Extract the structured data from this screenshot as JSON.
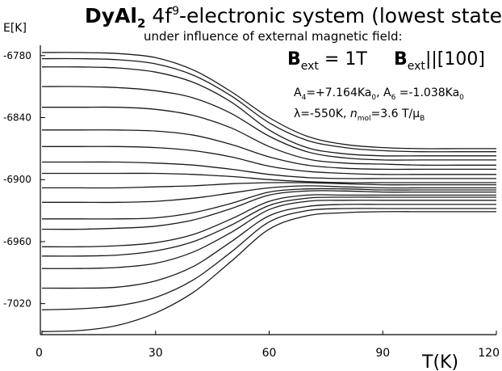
{
  "chart_data": {
    "type": "line",
    "title": {
      "main": "DyAl",
      "main_sub": "2",
      "formula_a": " 4f",
      "formula_sup": "9",
      "formula_b": "-electronic system (lowest states)"
    },
    "subtitle": "under influence of external magnetic field:",
    "field_annotation": {
      "b": "B",
      "ext": "ext",
      "value": " = 1T",
      "direction": "||[100]"
    },
    "param_line1": {
      "a4": "A",
      "a4_sub": "4",
      "a4_val": "=+7.164Ka",
      "a4_zero": "0",
      "sep": ", ",
      "a6": "A",
      "a6_sub": "6",
      "a6_val": " =-1.038Ka",
      "a6_zero": "0"
    },
    "param_line2": {
      "lambda": "λ=-550K,  ",
      "n": "n",
      "n_sub": "mol",
      "n_val": "=3.6 T/μ",
      "n_unit_sub": "B"
    },
    "xlabel": "T(K)",
    "ylabel": "E[K]",
    "xlim": [
      0,
      120
    ],
    "ylim": [
      -7050,
      -6770
    ],
    "x_ticks": [
      0,
      30,
      60,
      90,
      120
    ],
    "x_tick_labels": [
      "0",
      "30",
      "60",
      "90",
      "120"
    ],
    "y_ticks": [
      -6780,
      -6840,
      -6900,
      -6960,
      -7020
    ],
    "y_tick_labels": [
      "-6780",
      "-6840",
      "-6900",
      "-6960",
      "-7020"
    ],
    "grid": false,
    "x": [
      0,
      10,
      20,
      30,
      40,
      50,
      60,
      70,
      80,
      90,
      100,
      110,
      120
    ],
    "series": [
      {
        "values": [
          -6777,
          -6777,
          -6778,
          -6782,
          -6794,
          -6815,
          -6840,
          -6858,
          -6866,
          -6869,
          -6870,
          -6870,
          -6870
        ]
      },
      {
        "values": [
          -6783,
          -6783,
          -6784,
          -6788,
          -6799,
          -6819,
          -6845,
          -6862,
          -6869,
          -6872,
          -6873,
          -6873,
          -6873
        ]
      },
      {
        "values": [
          -6791,
          -6791,
          -6792,
          -6796,
          -6806,
          -6825,
          -6852,
          -6869,
          -6875,
          -6877,
          -6877,
          -6877,
          -6877
        ]
      },
      {
        "values": [
          -6810,
          -6810,
          -6811,
          -6814,
          -6821,
          -6836,
          -6858,
          -6873,
          -6879,
          -6881,
          -6881,
          -6881,
          -6881
        ]
      },
      {
        "values": [
          -6830,
          -6830,
          -6830,
          -6832,
          -6838,
          -6850,
          -6868,
          -6880,
          -6884,
          -6885,
          -6886,
          -6886,
          -6886
        ]
      },
      {
        "values": [
          -6852,
          -6852,
          -6852,
          -6853,
          -6857,
          -6866,
          -6878,
          -6886,
          -6889,
          -6890,
          -6890,
          -6890,
          -6890
        ]
      },
      {
        "values": [
          -6868,
          -6868,
          -6868,
          -6869,
          -6872,
          -6878,
          -6887,
          -6892,
          -6894,
          -6895,
          -6895,
          -6895,
          -6895
        ]
      },
      {
        "values": [
          -6883,
          -6883,
          -6883,
          -6884,
          -6886,
          -6890,
          -6895,
          -6898,
          -6899,
          -6899,
          -6899,
          -6899,
          -6899
        ]
      },
      {
        "values": [
          -6894,
          -6894,
          -6894,
          -6894,
          -6895,
          -6897,
          -6900,
          -6902,
          -6903,
          -6903,
          -6903,
          -6903,
          -6903
        ]
      },
      {
        "values": [
          -6908,
          -6908,
          -6908,
          -6907,
          -6906,
          -6904,
          -6903,
          -6903,
          -6904,
          -6905,
          -6905,
          -6905,
          -6905
        ]
      },
      {
        "values": [
          -6922,
          -6922,
          -6922,
          -6921,
          -6918,
          -6913,
          -6908,
          -6906,
          -6907,
          -6908,
          -6908,
          -6908,
          -6908
        ]
      },
      {
        "values": [
          -6938,
          -6938,
          -6938,
          -6937,
          -6932,
          -6923,
          -6912,
          -6909,
          -6909,
          -6910,
          -6910,
          -6910,
          -6910
        ]
      },
      {
        "values": [
          -6948,
          -6948,
          -6947,
          -6945,
          -6939,
          -6928,
          -6915,
          -6911,
          -6911,
          -6912,
          -6912,
          -6912,
          -6912
        ]
      },
      {
        "values": [
          -6965,
          -6965,
          -6964,
          -6961,
          -6953,
          -6938,
          -6921,
          -6915,
          -6915,
          -6915,
          -6915,
          -6915,
          -6915
        ]
      },
      {
        "values": [
          -6974,
          -6974,
          -6973,
          -6969,
          -6960,
          -6944,
          -6925,
          -6918,
          -6917,
          -6917,
          -6917,
          -6917,
          -6917
        ]
      },
      {
        "values": [
          -6986,
          -6986,
          -6985,
          -6981,
          -6970,
          -6951,
          -6929,
          -6921,
          -6920,
          -6920,
          -6920,
          -6920,
          -6920
        ]
      },
      {
        "values": [
          -7005,
          -7005,
          -7004,
          -6998,
          -6984,
          -6960,
          -6935,
          -6926,
          -6924,
          -6924,
          -6924,
          -6924,
          -6924
        ]
      },
      {
        "values": [
          -7026,
          -7025,
          -7022,
          -7014,
          -6997,
          -6970,
          -6941,
          -6930,
          -6928,
          -6928,
          -6928,
          -6928,
          -6928
        ]
      },
      {
        "values": [
          -7047,
          -7046,
          -7041,
          -7029,
          -7009,
          -6979,
          -6948,
          -6935,
          -6932,
          -6931,
          -6931,
          -6931,
          -6931
        ]
      }
    ],
    "colors": {
      "line": "#1a1a1a",
      "text": "#000000",
      "background": "#ffffff"
    }
  }
}
